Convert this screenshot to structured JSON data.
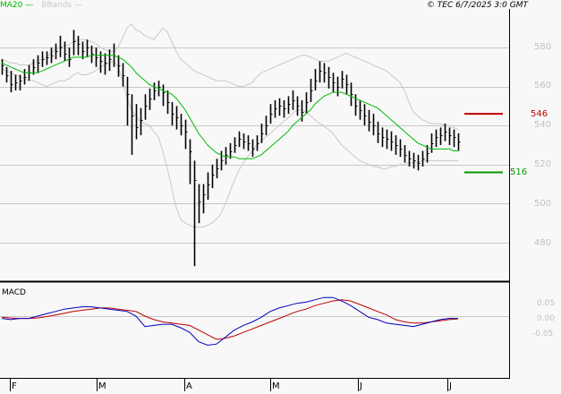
{
  "header": {
    "legend": [
      {
        "label": "MA20",
        "color": "#00bb00"
      },
      {
        "label": "BBands",
        "color": "#c8c8c8"
      }
    ],
    "copyright": "© TEC 6/7/2025 3:0 GMT"
  },
  "price_axis": {
    "ticks": [
      "580",
      "560",
      "540",
      "520",
      "500",
      "480"
    ]
  },
  "levels": {
    "resistance": {
      "label": "546",
      "color": "#c00000"
    },
    "support": {
      "label": "516",
      "color": "#009900"
    }
  },
  "macd_panel": {
    "title": "MACD",
    "ticks": [
      "0.05",
      "0.00",
      "-0.05"
    ]
  },
  "x_axis": {
    "months": [
      "F",
      "M",
      "A",
      "M",
      "J",
      "J"
    ]
  },
  "colors": {
    "background": "#f8f8f8",
    "grid": "#c8c8c8",
    "ma20": "#00bb00",
    "bbands": "#c8c8c8",
    "macd_line": "#0000bb",
    "signal_line": "#bb0000",
    "resistance": "#c00000",
    "support": "#009900"
  },
  "chart_data": [
    {
      "type": "ohlc",
      "title": "Price with MA20 and Bollinger Bands",
      "xlabel": "",
      "ylabel": "",
      "ylim": [
        462,
        598
      ],
      "x_ticks": [
        "F",
        "M",
        "A",
        "M",
        "J",
        "J"
      ],
      "y_ticks": [
        480,
        500,
        520,
        540,
        560,
        580
      ],
      "grid": true,
      "legend": [
        "MA20",
        "BBands"
      ],
      "annotations": [
        {
          "type": "hline",
          "value": 546,
          "label": "546",
          "color": "#c00000",
          "role": "resistance"
        },
        {
          "type": "hline",
          "value": 516,
          "label": "516",
          "color": "#009900",
          "role": "support"
        }
      ],
      "x": [
        2,
        7,
        12,
        17,
        22,
        27,
        32,
        37,
        42,
        47,
        52,
        57,
        62,
        67,
        72,
        77,
        82,
        87,
        92,
        97,
        102,
        107,
        112,
        117,
        122,
        127,
        132,
        137,
        142,
        147,
        152,
        157,
        162,
        167,
        172,
        177,
        182,
        187,
        192,
        197,
        202,
        207,
        212,
        217,
        222,
        227,
        232,
        237,
        242,
        247,
        252,
        257,
        262,
        267,
        272,
        277,
        282,
        287,
        292,
        297,
        302,
        307,
        312,
        317,
        322,
        327,
        332,
        337,
        342,
        347,
        352,
        357,
        362,
        367,
        372,
        377,
        382,
        387,
        392,
        397,
        402,
        407,
        412,
        417,
        422,
        427,
        432,
        437,
        442,
        447,
        452,
        457,
        462,
        467,
        472,
        477,
        482,
        487,
        492,
        497,
        502,
        507,
        512
      ],
      "series": [
        {
          "name": "Close",
          "values": [
            571,
            566,
            561,
            562,
            563,
            565,
            567,
            570,
            572,
            574,
            575,
            576,
            578,
            580,
            577,
            574,
            583,
            582,
            578,
            580,
            577,
            575,
            573,
            572,
            574,
            576,
            571,
            566,
            556,
            545,
            539,
            543,
            550,
            554,
            558,
            560,
            557,
            552,
            546,
            544,
            540,
            537,
            527,
            512,
            501,
            505,
            510,
            515,
            518,
            522,
            525,
            527,
            530,
            533,
            532,
            531,
            528,
            531,
            536,
            540,
            546,
            549,
            550,
            549,
            551,
            553,
            550,
            547,
            552,
            558,
            563,
            568,
            567,
            565,
            562,
            560,
            564,
            561,
            556,
            550,
            548,
            545,
            542,
            540,
            536,
            534,
            533,
            532,
            530,
            528,
            525,
            523,
            522,
            521,
            523,
            526,
            531,
            534,
            535,
            537,
            535,
            534,
            532
          ]
        },
        {
          "name": "High",
          "values": [
            574,
            570,
            568,
            566,
            566,
            569,
            571,
            574,
            576,
            578,
            578,
            580,
            582,
            586,
            583,
            580,
            589,
            586,
            583,
            584,
            581,
            580,
            578,
            577,
            579,
            582,
            576,
            572,
            565,
            556,
            551,
            549,
            556,
            559,
            562,
            563,
            561,
            558,
            552,
            550,
            546,
            543,
            533,
            522,
            510,
            510,
            516,
            520,
            523,
            527,
            529,
            531,
            534,
            537,
            536,
            535,
            533,
            535,
            541,
            545,
            551,
            553,
            554,
            553,
            555,
            558,
            555,
            553,
            557,
            564,
            569,
            573,
            572,
            570,
            567,
            565,
            568,
            566,
            562,
            556,
            553,
            551,
            548,
            546,
            542,
            539,
            538,
            537,
            535,
            533,
            530,
            527,
            526,
            525,
            527,
            530,
            536,
            538,
            539,
            541,
            539,
            538,
            536
          ]
        },
        {
          "name": "Low",
          "values": [
            566,
            562,
            557,
            558,
            558,
            561,
            563,
            566,
            567,
            570,
            571,
            572,
            574,
            575,
            573,
            570,
            576,
            576,
            574,
            575,
            572,
            570,
            567,
            566,
            568,
            570,
            565,
            560,
            540,
            525,
            533,
            535,
            543,
            548,
            553,
            555,
            550,
            546,
            540,
            538,
            535,
            528,
            510,
            468,
            490,
            495,
            502,
            508,
            513,
            517,
            520,
            523,
            526,
            529,
            528,
            527,
            524,
            527,
            531,
            535,
            541,
            544,
            545,
            544,
            546,
            548,
            545,
            542,
            546,
            552,
            558,
            562,
            562,
            559,
            557,
            555,
            559,
            556,
            550,
            545,
            543,
            540,
            537,
            535,
            531,
            529,
            528,
            527,
            525,
            524,
            521,
            519,
            518,
            517,
            519,
            521,
            526,
            529,
            530,
            532,
            530,
            529,
            527
          ]
        },
        {
          "name": "MA20",
          "values": [
            572,
            571,
            570,
            569,
            568,
            567,
            567,
            567,
            567,
            568,
            569,
            570,
            571,
            572,
            573,
            574,
            575,
            575,
            575,
            575,
            576,
            576,
            576,
            576,
            576,
            576,
            575,
            574,
            572,
            570,
            567,
            565,
            563,
            561,
            560,
            559,
            558,
            557,
            556,
            554,
            551,
            548,
            544,
            540,
            536,
            533,
            530,
            528,
            526,
            525,
            524,
            524,
            524,
            523,
            523,
            523,
            523,
            524,
            525,
            527,
            529,
            531,
            533,
            535,
            537,
            540,
            542,
            544,
            546,
            548,
            551,
            553,
            555,
            556,
            557,
            557,
            557,
            556,
            555,
            554,
            553,
            552,
            551,
            550,
            549,
            547,
            545,
            543,
            541,
            539,
            537,
            535,
            533,
            531,
            530,
            529,
            528,
            528,
            528,
            528,
            528,
            527,
            527
          ]
        },
        {
          "name": "BB Upper",
          "values": [
            574,
            573,
            572,
            572,
            571,
            571,
            571,
            572,
            573,
            574,
            575,
            577,
            579,
            580,
            581,
            581,
            583,
            584,
            584,
            584,
            583,
            582,
            580,
            579,
            578,
            578,
            580,
            585,
            590,
            592,
            589,
            588,
            586,
            585,
            584,
            587,
            590,
            588,
            583,
            578,
            574,
            572,
            570,
            568,
            567,
            566,
            565,
            564,
            563,
            563,
            563,
            562,
            561,
            560,
            560,
            561,
            562,
            565,
            567,
            568,
            569,
            570,
            571,
            572,
            573,
            574,
            575,
            576,
            576,
            575,
            574,
            573,
            573,
            573,
            574,
            575,
            576,
            577,
            576,
            575,
            574,
            573,
            572,
            571,
            570,
            569,
            568,
            566,
            564,
            562,
            558,
            552,
            547,
            545,
            543,
            542,
            541,
            541,
            541,
            540,
            540,
            539,
            538
          ]
        },
        {
          "name": "BB Lower",
          "values": [
            569,
            568,
            567,
            566,
            565,
            564,
            563,
            563,
            562,
            561,
            560,
            561,
            562,
            563,
            563,
            564,
            566,
            567,
            566,
            566,
            567,
            568,
            570,
            571,
            572,
            573,
            570,
            563,
            554,
            548,
            545,
            542,
            541,
            540,
            537,
            534,
            527,
            518,
            508,
            498,
            492,
            490,
            489,
            488,
            488,
            488,
            489,
            490,
            492,
            495,
            500,
            506,
            512,
            517,
            521,
            524,
            527,
            530,
            532,
            534,
            536,
            538,
            540,
            542,
            544,
            546,
            548,
            548,
            547,
            545,
            543,
            541,
            540,
            538,
            536,
            533,
            530,
            528,
            526,
            524,
            522,
            521,
            520,
            519,
            519,
            518,
            518,
            519,
            519,
            520,
            520,
            521,
            521,
            521,
            522,
            522,
            522,
            522,
            522,
            522,
            522,
            522,
            522
          ]
        }
      ]
    },
    {
      "type": "line",
      "title": "MACD",
      "xlabel": "",
      "ylabel": "",
      "ylim": [
        -0.12,
        0.12
      ],
      "y_ticks": [
        0.05,
        0.0,
        -0.05
      ],
      "x_ticks": [
        "F",
        "M",
        "A",
        "M",
        "J",
        "J"
      ],
      "grid": false,
      "x": [
        2,
        12,
        22,
        32,
        42,
        52,
        62,
        72,
        82,
        92,
        102,
        112,
        122,
        132,
        142,
        152,
        162,
        172,
        182,
        192,
        202,
        212,
        222,
        232,
        242,
        252,
        262,
        272,
        282,
        292,
        302,
        312,
        322,
        332,
        342,
        352,
        362,
        372,
        382,
        392,
        402,
        412,
        422,
        432,
        442,
        452,
        462,
        472,
        482,
        492,
        502,
        512
      ],
      "series": [
        {
          "name": "MACD",
          "color": "#0000bb",
          "values": [
            -0.01,
            -0.015,
            -0.01,
            -0.01,
            0.0,
            0.01,
            0.02,
            0.03,
            0.035,
            0.04,
            0.04,
            0.035,
            0.03,
            0.025,
            0.02,
            0.0,
            -0.045,
            -0.04,
            -0.035,
            -0.035,
            -0.05,
            -0.07,
            -0.11,
            -0.125,
            -0.12,
            -0.09,
            -0.06,
            -0.04,
            -0.025,
            -0.005,
            0.02,
            0.035,
            0.045,
            0.055,
            0.06,
            0.07,
            0.08,
            0.08,
            0.065,
            0.045,
            0.02,
            -0.005,
            -0.015,
            -0.03,
            -0.035,
            -0.04,
            -0.045,
            -0.035,
            -0.025,
            -0.015,
            -0.01,
            -0.01
          ]
        },
        {
          "name": "Signal",
          "color": "#bb0000",
          "values": [
            -0.005,
            -0.008,
            -0.01,
            -0.01,
            -0.008,
            -0.002,
            0.005,
            0.012,
            0.02,
            0.025,
            0.03,
            0.035,
            0.035,
            0.03,
            0.025,
            0.02,
            0.0,
            -0.015,
            -0.025,
            -0.03,
            -0.035,
            -0.04,
            -0.06,
            -0.08,
            -0.1,
            -0.095,
            -0.085,
            -0.07,
            -0.055,
            -0.04,
            -0.025,
            -0.01,
            0.005,
            0.02,
            0.03,
            0.045,
            0.055,
            0.065,
            0.07,
            0.065,
            0.05,
            0.035,
            0.02,
            0.005,
            -0.015,
            -0.025,
            -0.03,
            -0.03,
            -0.025,
            -0.02,
            -0.015,
            -0.012
          ]
        }
      ]
    }
  ]
}
